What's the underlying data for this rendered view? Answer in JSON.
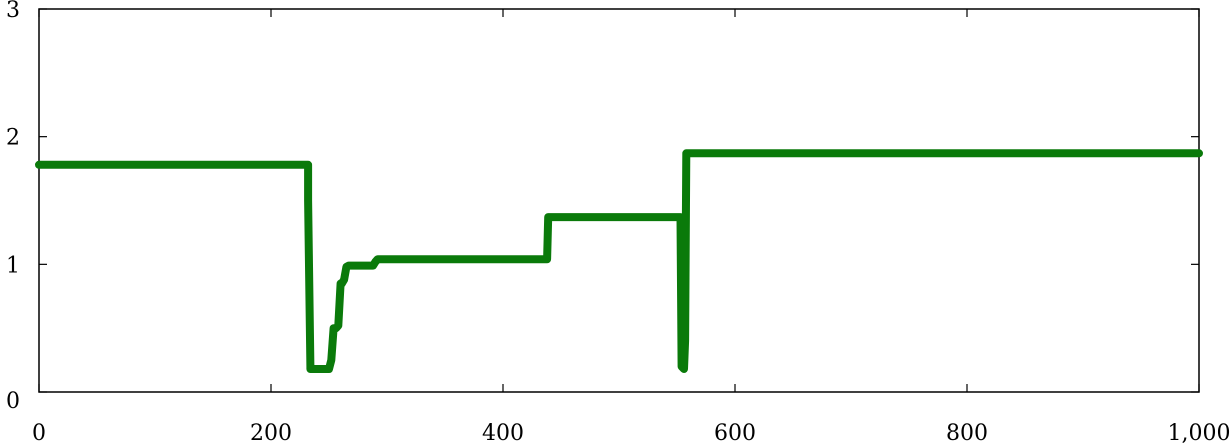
{
  "chart_data": {
    "type": "line",
    "title": "",
    "xlabel": "",
    "ylabel": "",
    "xlim": [
      0,
      1000
    ],
    "ylim": [
      0,
      3
    ],
    "xticks": [
      0,
      200,
      400,
      600,
      800,
      1000
    ],
    "xtick_labels": [
      "0",
      "200",
      "400",
      "600",
      "800",
      "1,000"
    ],
    "yticks": [
      0,
      1,
      2,
      3
    ],
    "ytick_labels": [
      "0",
      "1",
      "2",
      "3"
    ],
    "grid": false,
    "legend": "none",
    "colors": {
      "series": "#0a7a0a",
      "axis": "#000000"
    },
    "series": [
      {
        "x": [
          0,
          232,
          232,
          234,
          234,
          250,
          252,
          254,
          256,
          258,
          260,
          261,
          263,
          265,
          267,
          268,
          288,
          290,
          292,
          400,
          438,
          439,
          441,
          553,
          554,
          556,
          557,
          558,
          1000
        ],
        "y": [
          1.78,
          1.78,
          1.5,
          0.2,
          0.18,
          0.18,
          0.25,
          0.5,
          0.5,
          0.52,
          0.85,
          0.85,
          0.88,
          0.98,
          0.99,
          0.99,
          0.99,
          1.02,
          1.04,
          1.04,
          1.04,
          1.37,
          1.37,
          1.37,
          0.2,
          0.18,
          0.4,
          1.87,
          1.87
        ]
      }
    ]
  }
}
